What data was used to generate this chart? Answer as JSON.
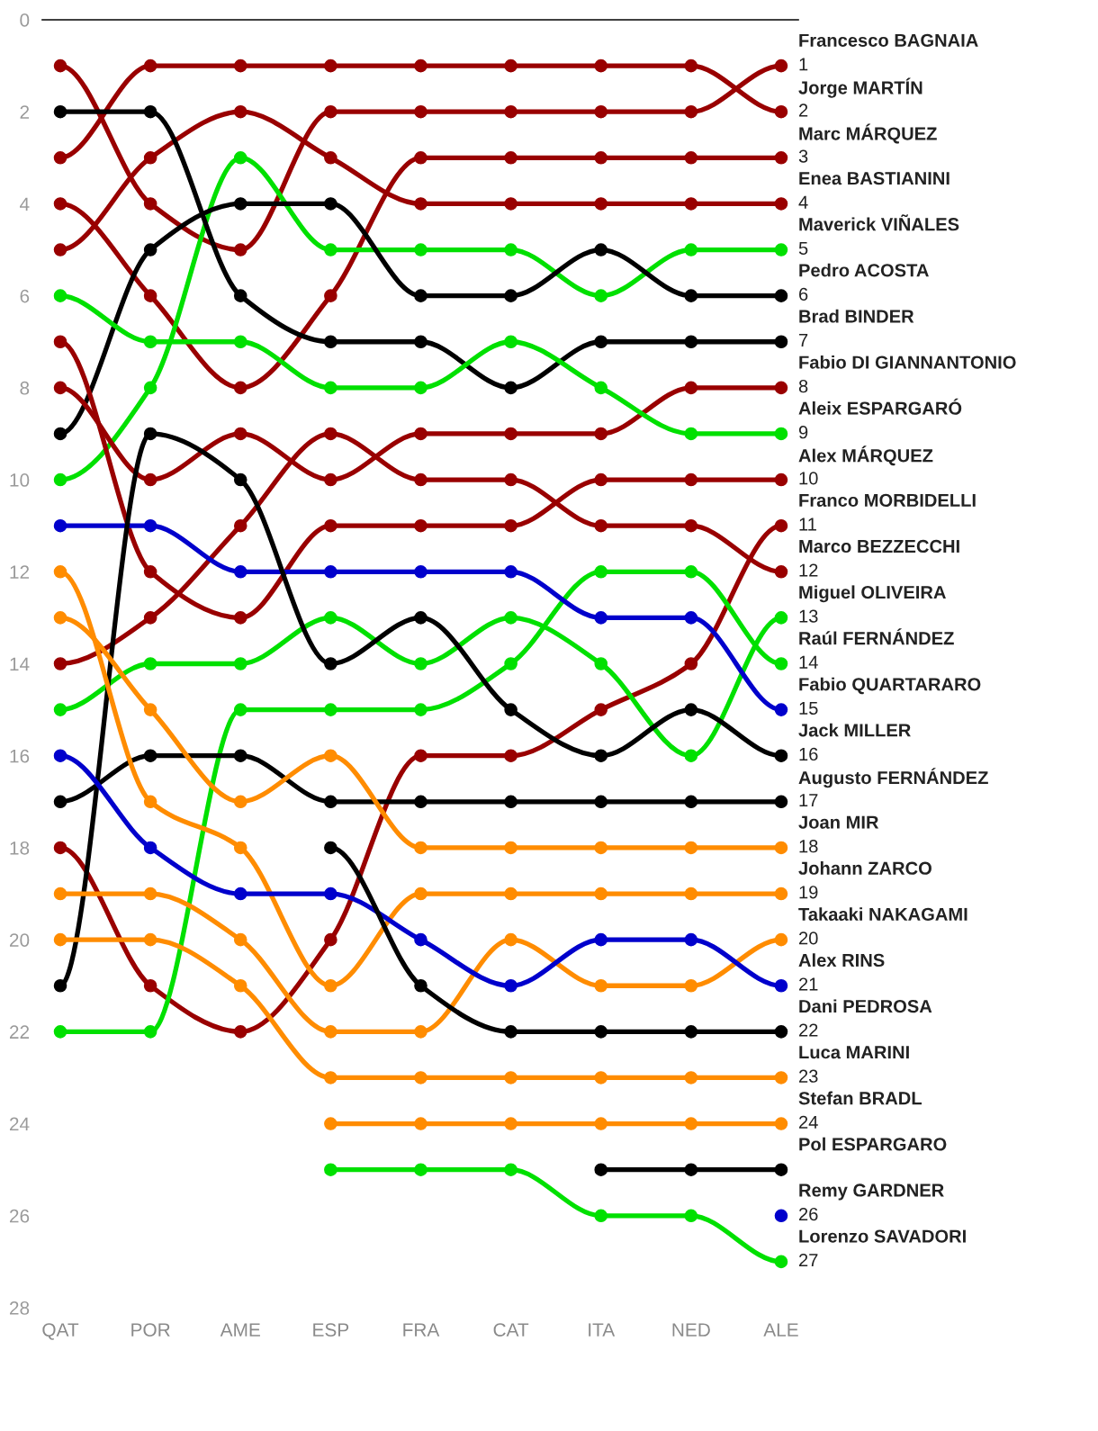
{
  "chart_data": {
    "type": "line",
    "categories": [
      "QAT",
      "POR",
      "AME",
      "ESP",
      "FRA",
      "CAT",
      "ITA",
      "NED",
      "ALE"
    ],
    "ylim": [
      28,
      0
    ],
    "yticks": [
      0,
      2,
      4,
      6,
      8,
      10,
      12,
      14,
      16,
      18,
      20,
      22,
      24,
      26,
      28
    ],
    "grid": false,
    "marker": "circle",
    "line_style": "solid",
    "series": [
      {
        "name": "Francesco BAGNAIA",
        "color": "#990000",
        "values": [
          1,
          4,
          5,
          2,
          2,
          2,
          2,
          2,
          1
        ],
        "value_labels": [
          null,
          null,
          null,
          null,
          null,
          null,
          null,
          null,
          "1"
        ]
      },
      {
        "name": "Jorge MARTÍN",
        "color": "#990000",
        "values": [
          3,
          1,
          1,
          1,
          1,
          1,
          1,
          1,
          2
        ],
        "value_labels": [
          null,
          null,
          null,
          null,
          null,
          null,
          null,
          null,
          "2"
        ]
      },
      {
        "name": "Marc MÁRQUEZ",
        "color": "#990000",
        "values": [
          4,
          6,
          8,
          6,
          3,
          3,
          3,
          3,
          3
        ],
        "value_labels": [
          null,
          null,
          null,
          null,
          null,
          null,
          null,
          null,
          "3"
        ]
      },
      {
        "name": "Enea BASTIANINI",
        "color": "#990000",
        "values": [
          5,
          3,
          2,
          3,
          4,
          4,
          4,
          4,
          4
        ],
        "value_labels": [
          null,
          null,
          null,
          null,
          null,
          null,
          null,
          null,
          "4"
        ]
      },
      {
        "name": "Maverick VIÑALES",
        "color": "#00e000",
        "values": [
          10,
          8,
          3,
          5,
          5,
          5,
          6,
          5,
          5
        ],
        "value_labels": [
          null,
          null,
          null,
          null,
          null,
          null,
          null,
          null,
          "5"
        ]
      },
      {
        "name": "Pedro ACOSTA",
        "color": "#000000",
        "values": [
          9,
          5,
          4,
          4,
          6,
          6,
          5,
          6,
          6
        ],
        "value_labels": [
          null,
          null,
          null,
          null,
          null,
          null,
          null,
          null,
          "6"
        ]
      },
      {
        "name": "Brad BINDER",
        "color": "#000000",
        "values": [
          2,
          2,
          6,
          7,
          7,
          8,
          7,
          7,
          7
        ],
        "value_labels": [
          null,
          null,
          null,
          null,
          null,
          null,
          null,
          null,
          "7"
        ]
      },
      {
        "name": "Fabio DI GIANNANTONIO",
        "color": "#990000",
        "values": [
          8,
          10,
          9,
          10,
          9,
          9,
          9,
          8,
          8
        ],
        "value_labels": [
          null,
          null,
          null,
          null,
          null,
          null,
          null,
          null,
          "8"
        ]
      },
      {
        "name": "Aleix ESPARGARÓ",
        "color": "#00e000",
        "values": [
          6,
          7,
          7,
          8,
          8,
          7,
          8,
          9,
          9
        ],
        "value_labels": [
          null,
          null,
          null,
          null,
          null,
          null,
          null,
          null,
          "9"
        ]
      },
      {
        "name": "Alex MÁRQUEZ",
        "color": "#990000",
        "values": [
          7,
          12,
          13,
          11,
          11,
          11,
          10,
          10,
          10
        ],
        "value_labels": [
          null,
          null,
          null,
          null,
          null,
          null,
          null,
          null,
          "10"
        ]
      },
      {
        "name": "Franco MORBIDELLI",
        "color": "#990000",
        "values": [
          18,
          21,
          22,
          20,
          16,
          16,
          15,
          14,
          11
        ],
        "value_labels": [
          null,
          null,
          null,
          null,
          null,
          null,
          null,
          null,
          "11"
        ]
      },
      {
        "name": "Marco BEZZECCHI",
        "color": "#990000",
        "values": [
          14,
          13,
          11,
          9,
          10,
          10,
          11,
          11,
          12
        ],
        "value_labels": [
          null,
          null,
          null,
          null,
          null,
          null,
          null,
          null,
          "12"
        ]
      },
      {
        "name": "Miguel OLIVEIRA",
        "color": "#00e000",
        "values": [
          15,
          14,
          14,
          13,
          14,
          13,
          14,
          16,
          13
        ],
        "value_labels": [
          null,
          null,
          null,
          null,
          null,
          null,
          null,
          null,
          "13"
        ]
      },
      {
        "name": "Raúl FERNÁNDEZ",
        "color": "#00e000",
        "values": [
          22,
          22,
          15,
          15,
          15,
          14,
          12,
          12,
          14
        ],
        "value_labels": [
          null,
          null,
          null,
          null,
          null,
          null,
          null,
          null,
          "14"
        ]
      },
      {
        "name": "Fabio QUARTARARO",
        "color": "#0000cc",
        "values": [
          11,
          11,
          12,
          12,
          12,
          12,
          13,
          13,
          15
        ],
        "value_labels": [
          null,
          null,
          null,
          null,
          null,
          null,
          null,
          null,
          "15"
        ]
      },
      {
        "name": "Jack MILLER",
        "color": "#000000",
        "values": [
          21,
          9,
          10,
          14,
          13,
          15,
          16,
          15,
          16
        ],
        "value_labels": [
          null,
          null,
          null,
          null,
          null,
          null,
          null,
          null,
          "16"
        ]
      },
      {
        "name": "Augusto FERNÁNDEZ",
        "color": "#000000",
        "values": [
          17,
          16,
          16,
          17,
          17,
          17,
          17,
          17,
          17
        ],
        "value_labels": [
          null,
          null,
          null,
          null,
          null,
          null,
          null,
          null,
          "17"
        ]
      },
      {
        "name": "Joan MIR",
        "color": "#ff8c00",
        "values": [
          13,
          15,
          17,
          16,
          18,
          18,
          18,
          18,
          18
        ],
        "value_labels": [
          null,
          null,
          null,
          null,
          null,
          null,
          null,
          null,
          "18"
        ]
      },
      {
        "name": "Johann ZARCO",
        "color": "#ff8c00",
        "values": [
          12,
          17,
          18,
          21,
          19,
          19,
          19,
          19,
          19
        ],
        "value_labels": [
          null,
          null,
          null,
          null,
          null,
          null,
          null,
          null,
          "19"
        ]
      },
      {
        "name": "Takaaki NAKAGAMI",
        "color": "#ff8c00",
        "values": [
          19,
          19,
          20,
          22,
          22,
          20,
          21,
          21,
          20
        ],
        "value_labels": [
          null,
          null,
          null,
          null,
          null,
          null,
          null,
          null,
          "20"
        ]
      },
      {
        "name": "Alex RINS",
        "color": "#0000cc",
        "values": [
          16,
          18,
          19,
          19,
          20,
          21,
          20,
          20,
          21
        ],
        "value_labels": [
          null,
          null,
          null,
          null,
          null,
          null,
          null,
          null,
          "21"
        ]
      },
      {
        "name": "Dani PEDROSA",
        "color": "#000000",
        "values": [
          null,
          null,
          null,
          18,
          21,
          22,
          22,
          22,
          22
        ],
        "value_labels": [
          null,
          null,
          null,
          null,
          null,
          null,
          null,
          null,
          "22"
        ]
      },
      {
        "name": "Luca MARINI",
        "color": "#ff8c00",
        "values": [
          20,
          20,
          21,
          23,
          23,
          23,
          23,
          23,
          23
        ],
        "value_labels": [
          null,
          null,
          null,
          null,
          null,
          null,
          null,
          null,
          "23"
        ]
      },
      {
        "name": "Stefan BRADL",
        "color": "#ff8c00",
        "values": [
          null,
          null,
          null,
          24,
          24,
          24,
          24,
          24,
          24
        ],
        "value_labels": [
          null,
          null,
          null,
          null,
          null,
          null,
          null,
          null,
          "24"
        ]
      },
      {
        "name": "Pol ESPARGARO",
        "color": "#000000",
        "values": [
          null,
          null,
          null,
          null,
          null,
          null,
          25,
          25,
          25
        ],
        "value_labels": [
          null,
          null,
          null,
          null,
          null,
          null,
          null,
          null,
          null
        ]
      },
      {
        "name": "Remy GARDNER",
        "color": "#0000cc",
        "values": [
          null,
          null,
          null,
          null,
          null,
          null,
          null,
          null,
          26
        ],
        "value_labels": [
          null,
          null,
          null,
          null,
          null,
          null,
          null,
          null,
          "26"
        ]
      },
      {
        "name": "Lorenzo SAVADORI",
        "color": "#00e000",
        "values": [
          null,
          null,
          null,
          25,
          25,
          25,
          26,
          26,
          27
        ],
        "value_labels": [
          null,
          null,
          null,
          null,
          null,
          null,
          null,
          null,
          "27"
        ]
      }
    ]
  }
}
